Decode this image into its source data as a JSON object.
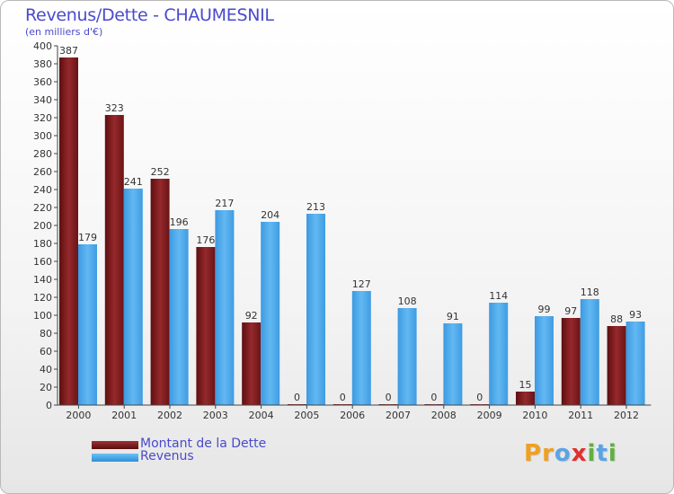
{
  "chart_data": {
    "type": "bar",
    "title": "Revenus/Dette - CHAUMESNIL",
    "subtitle": "(en milliers d'€)",
    "categories": [
      "2000",
      "2001",
      "2002",
      "2003",
      "2004",
      "2005",
      "2006",
      "2007",
      "2008",
      "2009",
      "2010",
      "2011",
      "2012"
    ],
    "series": [
      {
        "name": "Montant de la Dette",
        "color": "#7d1f22",
        "values": [
          387,
          323,
          252,
          176,
          92,
          0,
          0,
          0,
          0,
          0,
          15,
          97,
          88
        ]
      },
      {
        "name": "Revenus",
        "color": "#46a6ea",
        "values": [
          179,
          241,
          196,
          217,
          204,
          213,
          127,
          108,
          91,
          114,
          99,
          118,
          93
        ]
      }
    ],
    "ylim": [
      0,
      400
    ],
    "yticks": [
      0,
      20,
      40,
      60,
      80,
      100,
      120,
      140,
      160,
      180,
      200,
      220,
      240,
      260,
      280,
      300,
      320,
      340,
      360,
      380,
      400
    ],
    "xlabel": "",
    "ylabel": "",
    "grid": false,
    "legend": "bottom-left"
  },
  "logo": {
    "letters": [
      "P",
      "r",
      "o",
      "x",
      "i",
      "t",
      "i"
    ],
    "colors": [
      "#f0a020",
      "#f0a020",
      "#5aa4e6",
      "#e03030",
      "#60b040",
      "#5aa4e6",
      "#60b040"
    ]
  }
}
